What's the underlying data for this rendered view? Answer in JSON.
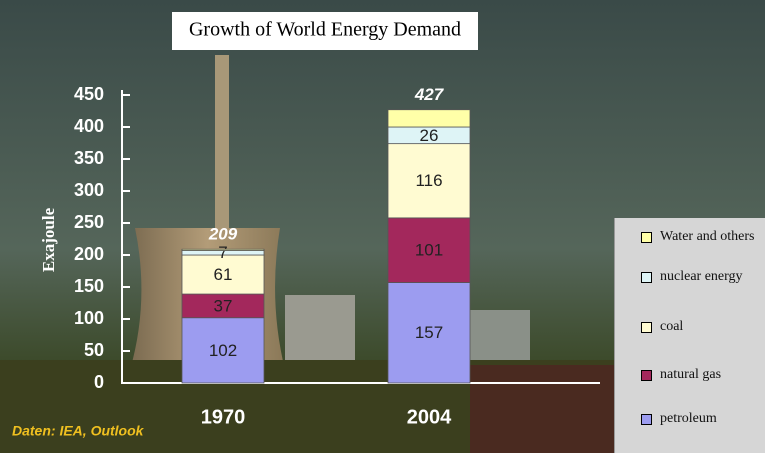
{
  "chart_data": {
    "type": "stacked-bar",
    "title": "Growth of World Energy Demand",
    "y_label": "Exajoule",
    "source": "Daten: IEA, Outlook",
    "categories": [
      "1970",
      "2004"
    ],
    "series": [
      {
        "name": "petroleum",
        "color": "#9c9cf0",
        "values": [
          102,
          157
        ]
      },
      {
        "name": "natural gas",
        "color": "#a3285c",
        "values": [
          37,
          101
        ]
      },
      {
        "name": "coal",
        "color": "#fffbd2",
        "values": [
          61,
          116
        ]
      },
      {
        "name": "nuclear energy",
        "color": "#def4f6",
        "values": [
          7,
          26
        ]
      },
      {
        "name": "Water and others",
        "color": "#ffffa8",
        "values": [
          2,
          27
        ],
        "labels": false
      }
    ],
    "totals": [
      209,
      427
    ],
    "ylim": [
      0,
      450
    ],
    "yticks": [
      0,
      50,
      100,
      150,
      200,
      250,
      300,
      350,
      400,
      450
    ]
  }
}
